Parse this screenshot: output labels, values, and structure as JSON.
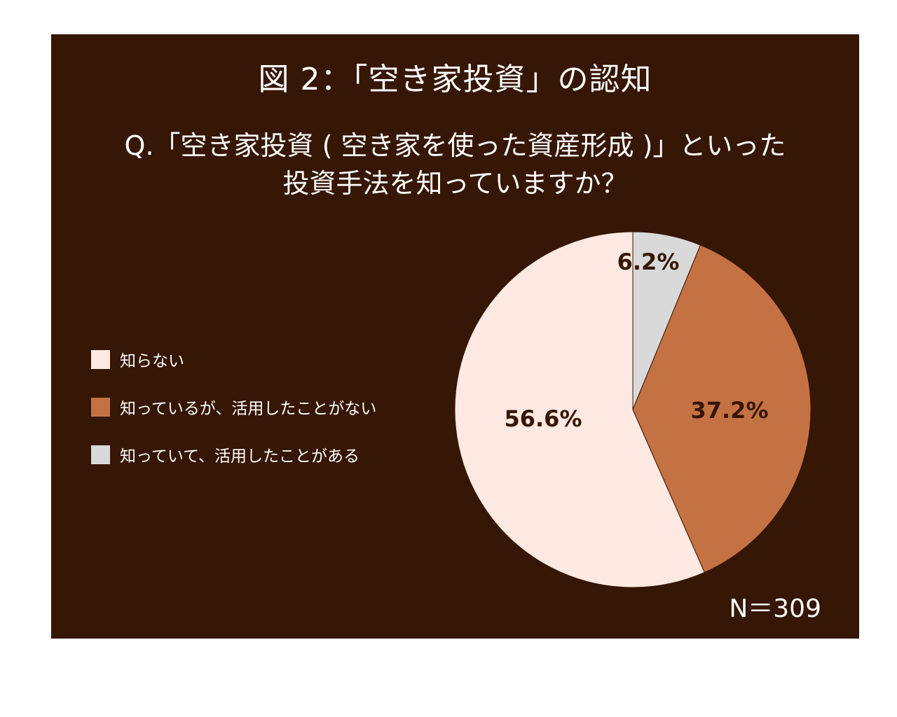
{
  "chart_data": {
    "type": "pie",
    "title": "図 2：「空き家投資」の認知",
    "question_lines": [
      "Q.「空き家投資 ( 空き家を使った資産形成 )」といった",
      "投資手法を知っていますか？"
    ],
    "slices": [
      {
        "name": "知っていて、活用したことがある",
        "value": 6.2,
        "label": "6.2%",
        "color": "#d9d9d9"
      },
      {
        "name": "知っているが、活用したことがない",
        "value": 37.2,
        "label": "37.2%",
        "color": "#c47244"
      },
      {
        "name": "知らない",
        "value": 56.6,
        "label": "56.6%",
        "color": "#fde9e1"
      }
    ],
    "legend": [
      {
        "label": "知らない",
        "color": "#fde9e1"
      },
      {
        "label": "知っているが、活用したことがない",
        "color": "#c47244"
      },
      {
        "label": "知っていて、活用したことがある",
        "color": "#d9d9d9"
      }
    ],
    "sample_size": "N＝309",
    "legend_position": "left",
    "start_angle": "top, clockwise"
  },
  "colors": {
    "background": "#361604",
    "text": "#ffffff",
    "label_text": "#361604"
  }
}
